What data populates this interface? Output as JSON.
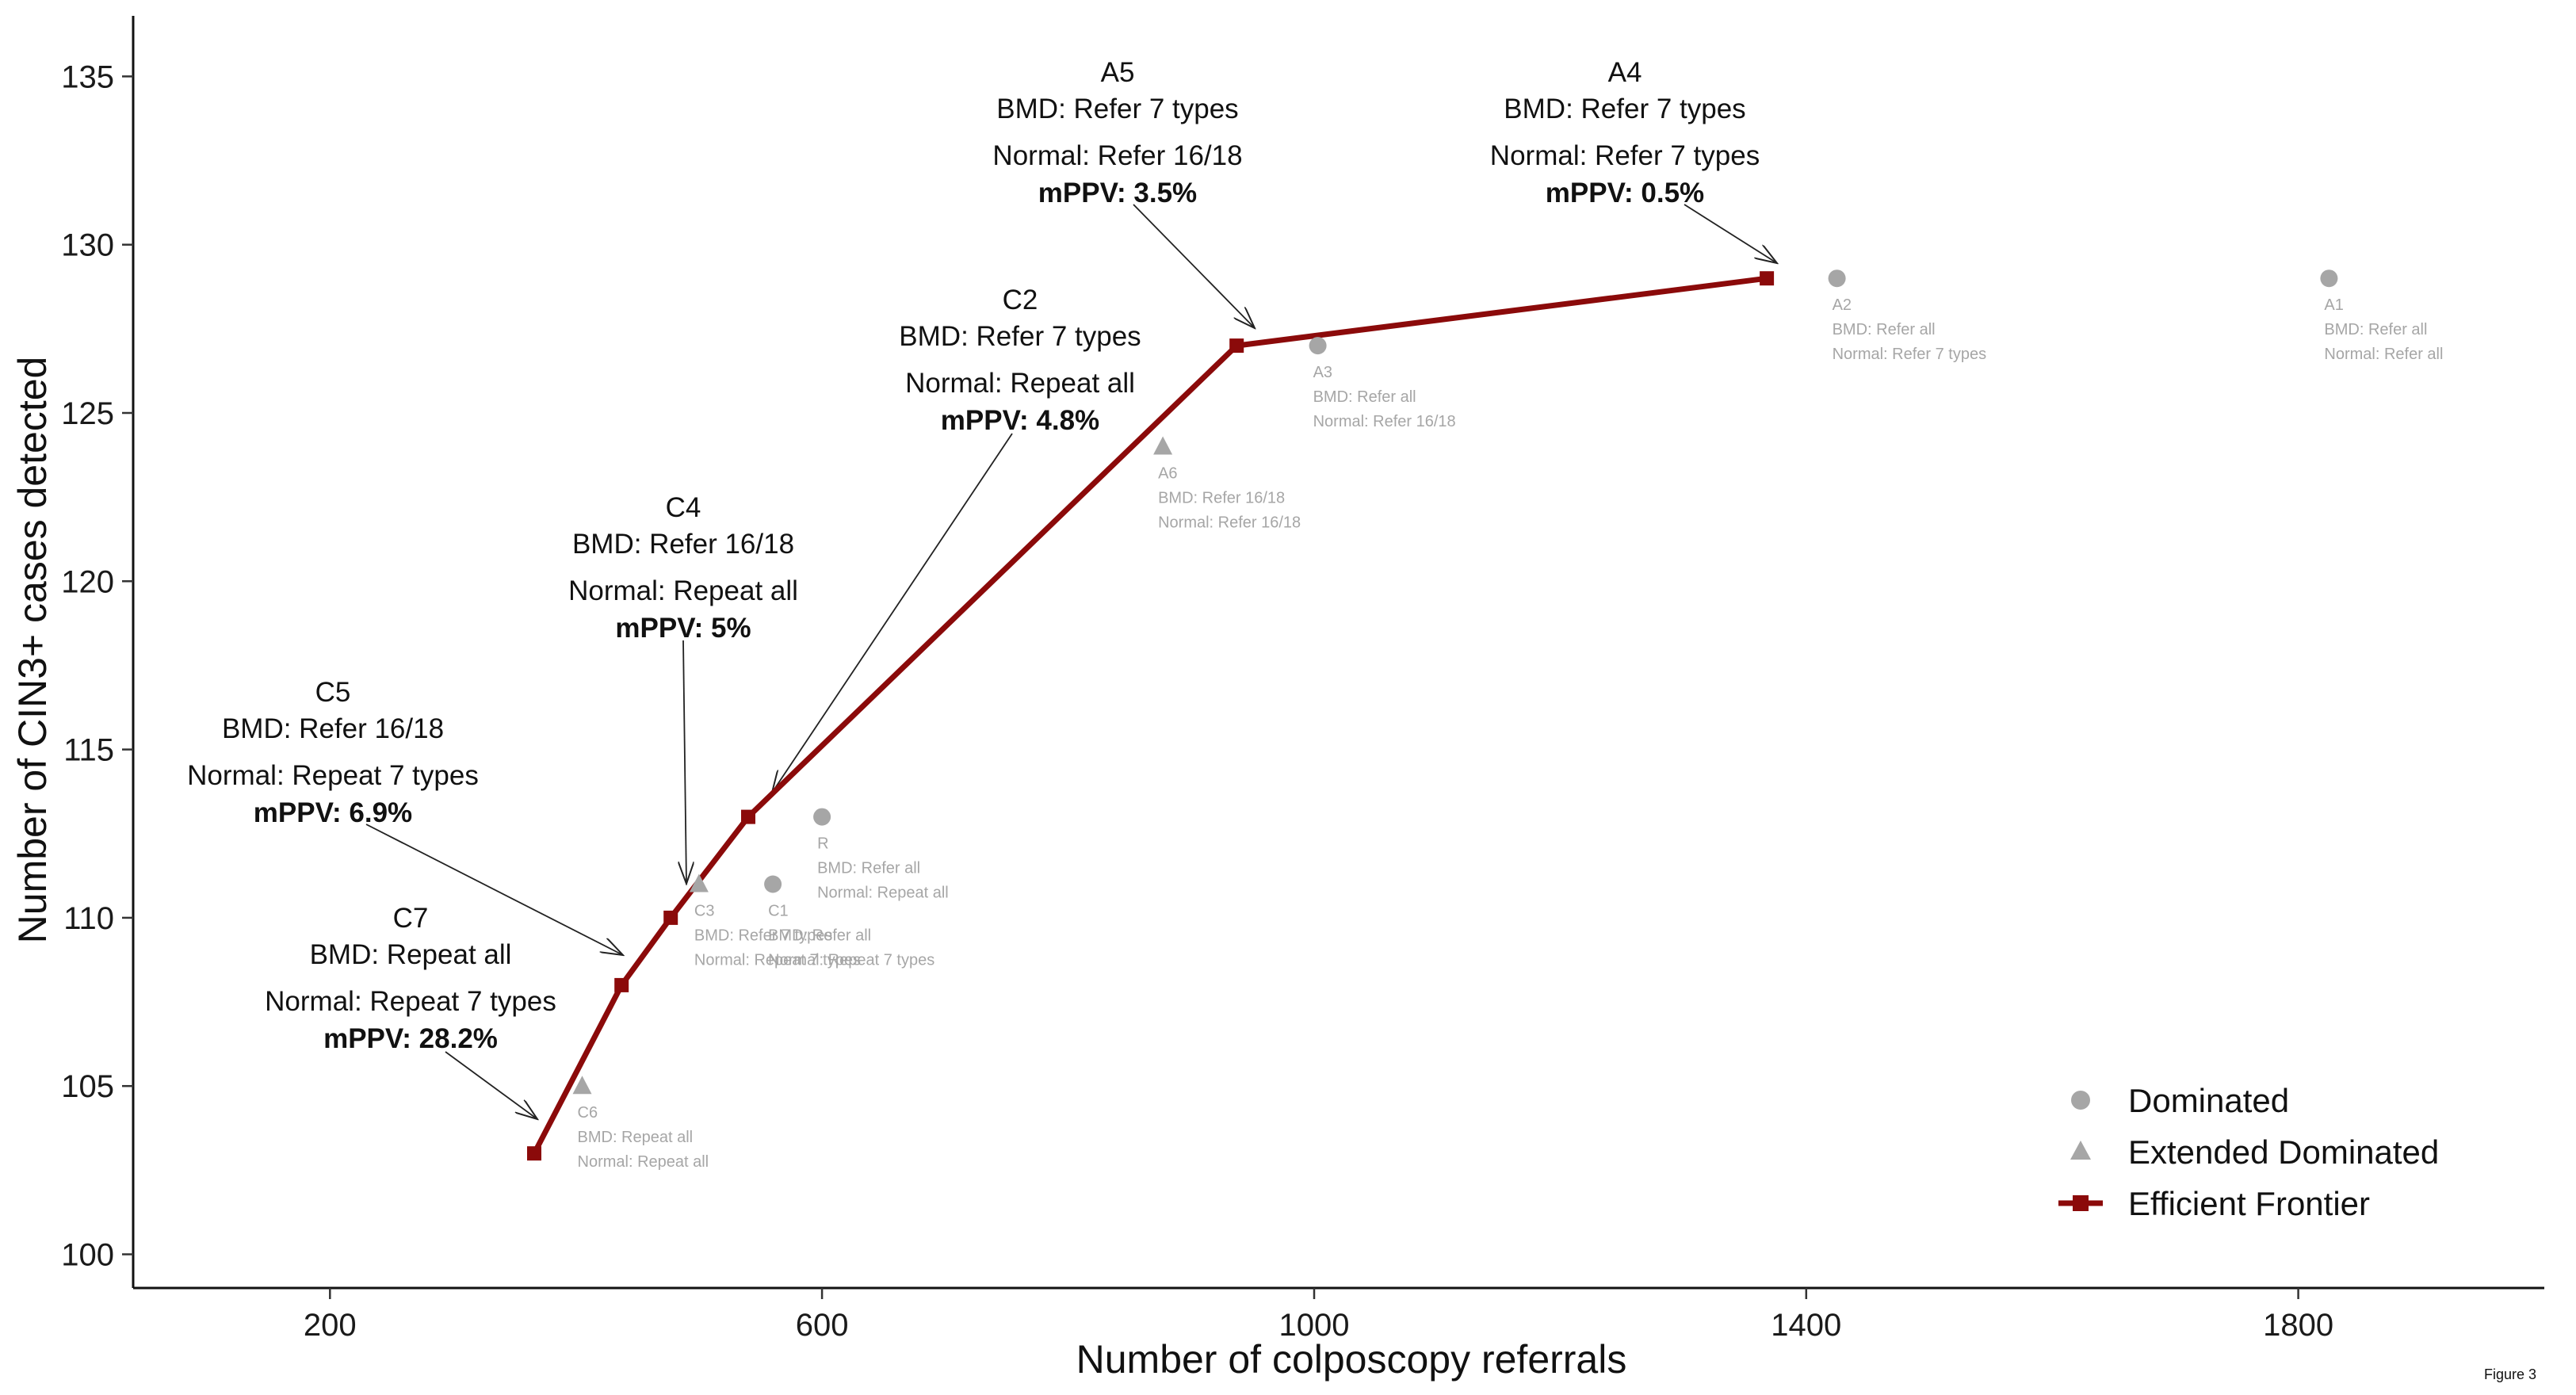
{
  "chart_data": {
    "type": "scatter",
    "title": "",
    "xlabel": "Number of colposcopy referrals",
    "ylabel": "Number of CIN3+ cases detected",
    "xlim": [
      40,
      2000
    ],
    "ylim": [
      99,
      136.8
    ],
    "xticks": [
      200,
      600,
      1000,
      1400,
      1800
    ],
    "yticks": [
      100,
      105,
      110,
      115,
      120,
      125,
      130,
      135
    ],
    "grid": false,
    "legend_position": "bottom-right",
    "colors": {
      "frontier": "#8B0A0A",
      "dominated": "#A6A6A6",
      "text": "#111111"
    },
    "legend": [
      {
        "marker": "circle",
        "label": "Dominated"
      },
      {
        "marker": "triangle",
        "label": "Extended Dominated"
      },
      {
        "marker": "square-line",
        "label": "Efficient Frontier"
      }
    ],
    "efficient_frontier": [
      {
        "id": "C7",
        "x": 366,
        "y": 103,
        "lines": [
          "C7",
          "BMD: Repeat all",
          "Normal: Repeat 7 types"
        ],
        "mppv": "mPPV: 28.2%"
      },
      {
        "id": "C5",
        "x": 437,
        "y": 108,
        "lines": [
          "C5",
          "BMD: Refer 16/18",
          "Normal: Repeat 7 types"
        ],
        "mppv": "mPPV: 6.9%"
      },
      {
        "id": "C4",
        "x": 477,
        "y": 110,
        "lines": [
          "C4",
          "BMD: Refer 16/18",
          "Normal: Repeat all"
        ],
        "mppv": "mPPV: 5%"
      },
      {
        "id": "C2",
        "x": 540,
        "y": 113,
        "lines": [
          "C2",
          "BMD: Refer 7 types",
          "Normal: Repeat all"
        ],
        "mppv": "mPPV: 4.8%"
      },
      {
        "id": "A5",
        "x": 937,
        "y": 127,
        "lines": [
          "A5",
          "BMD: Refer 7 types",
          "Normal: Refer 16/18"
        ],
        "mppv": "mPPV: 3.5%"
      },
      {
        "id": "A4",
        "x": 1368,
        "y": 129,
        "lines": [
          "A4",
          "BMD: Refer 7 types",
          "Normal: Refer 7 types"
        ],
        "mppv": "mPPV: 0.5%"
      }
    ],
    "dominated": [
      {
        "id": "A2",
        "x": 1425,
        "y": 129,
        "lines": [
          "A2",
          "BMD: Refer all",
          "Normal: Refer 7 types"
        ]
      },
      {
        "id": "A1",
        "x": 1825,
        "y": 129,
        "lines": [
          "A1",
          "BMD: Refer all",
          "Normal: Refer all"
        ]
      },
      {
        "id": "A3",
        "x": 1003,
        "y": 127,
        "lines": [
          "A3",
          "BMD: Refer all",
          "Normal: Refer 16/18"
        ]
      },
      {
        "id": "R",
        "x": 600,
        "y": 113,
        "lines": [
          "R",
          "BMD: Refer all",
          "Normal: Repeat all"
        ]
      },
      {
        "id": "C1",
        "x": 560,
        "y": 111,
        "lines": [
          "C1",
          "BMD: Refer all",
          "Normal: Repeat 7 types"
        ]
      }
    ],
    "extended_dominated": [
      {
        "id": "A6",
        "x": 877,
        "y": 124,
        "lines": [
          "A6",
          "BMD: Refer 16/18",
          "Normal: Refer 16/18"
        ]
      },
      {
        "id": "C3",
        "x": 500,
        "y": 111,
        "lines": [
          "C3",
          "BMD: Refer 7 types",
          "Normal: Repeat 7 types"
        ]
      },
      {
        "id": "C6",
        "x": 405,
        "y": 105,
        "lines": [
          "C6",
          "BMD: Repeat all",
          "Normal: Repeat all"
        ]
      }
    ]
  },
  "footnote": "Figure 3"
}
